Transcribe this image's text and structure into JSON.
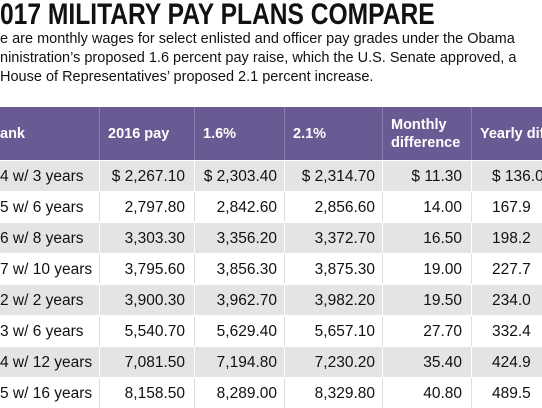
{
  "header": {
    "title": "017 MILITARY PAY PLANS COMPARE",
    "subtitle": [
      "e are monthly wages for select enlisted and officer pay grades under the Obama",
      "ninistration’s proposed 1.6 percent pay raise, which the U.S. Senate approved, a",
      "House of Representatives’ proposed 2.1 percent increase."
    ]
  },
  "table": {
    "columns": [
      "ank",
      "2016 pay",
      "1.6%",
      "2.1%",
      "Monthly difference",
      "Yearly differenc"
    ],
    "rows": [
      [
        "4 w/ 3 years",
        "$ 2,267.10",
        "$ 2,303.40",
        "$ 2,314.70",
        "$ 11.30",
        "$ 136.0"
      ],
      [
        "5 w/ 6 years",
        "2,797.80",
        "2,842.60",
        "2,856.60",
        "14.00",
        "167.9"
      ],
      [
        "6 w/ 8 years",
        "3,303.30",
        "3,356.20",
        "3,372.70",
        "16.50",
        "198.2"
      ],
      [
        "7 w/ 10 years",
        "3,795.60",
        "3,856.30",
        "3,875.30",
        "19.00",
        "227.7"
      ],
      [
        "2 w/ 2 years",
        "3,900.30",
        "3,962.70",
        "3,982.20",
        "19.50",
        "234.0"
      ],
      [
        "3 w/ 6 years",
        "5,540.70",
        "5,629.40",
        "5,657.10",
        "27.70",
        "332.4"
      ],
      [
        "4 w/ 12 years",
        "7,081.50",
        "7,194.80",
        "7,230.20",
        "35.40",
        "424.9"
      ],
      [
        "5 w/ 16 years",
        "8,158.50",
        "8,289.00",
        "8,329.80",
        "40.80",
        "489.5"
      ]
    ]
  }
}
